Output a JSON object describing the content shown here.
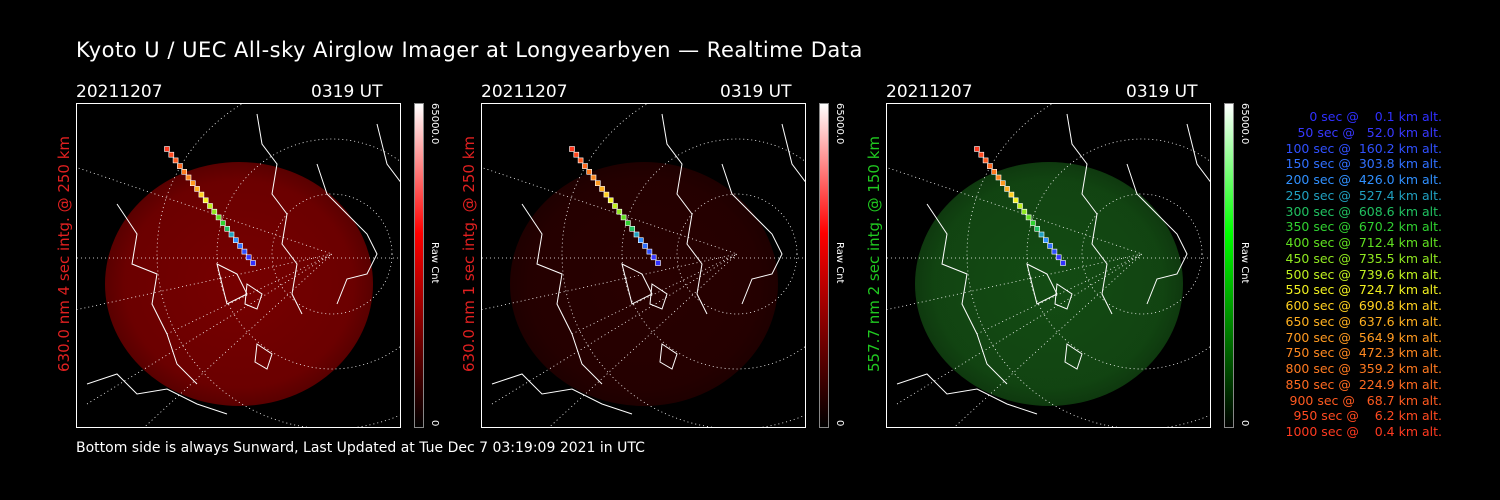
{
  "title": "Kyoto U / UEC All-sky Airglow Imager at Longyearbyen — Realtime Data",
  "footer": "Bottom side is always Sunward, Last Updated at Tue Dec  7 03:19:09 2021 in UTC",
  "panels": [
    {
      "date": "20211207",
      "time": "0319 UT",
      "side_label": "630.0 nm 4 sec intg. @ 250 km",
      "label_color": "#e02020",
      "glow": "#c00000",
      "glow_opacity": 0.62,
      "cbar_top": "65000.0",
      "cbar_bottom": "0",
      "cbar_unit": "Raw Cnt",
      "cbar_color": "#ff0000"
    },
    {
      "date": "20211207",
      "time": "0319 UT",
      "side_label": "630.0 nm 1 sec intg. @ 250 km",
      "label_color": "#e02020",
      "glow": "#5a0000",
      "glow_opacity": 0.45,
      "cbar_top": "65000.0",
      "cbar_bottom": "0",
      "cbar_unit": "Raw Cnt",
      "cbar_color": "#ff0000"
    },
    {
      "date": "20211207",
      "time": "0319 UT",
      "side_label": "557.7 nm 2 sec intg. @ 150 km",
      "label_color": "#20c820",
      "glow": "#1f7a1f",
      "glow_opacity": 0.62,
      "cbar_top": "65000.0",
      "cbar_bottom": "0",
      "cbar_unit": "Raw Cnt",
      "cbar_color": "#00ff00"
    }
  ],
  "legend": [
    {
      "text": "   0 sec @    0.1 km alt.",
      "color": "#3030ff"
    },
    {
      "text": "  50 sec @   52.0 km alt.",
      "color": "#3838ff"
    },
    {
      "text": " 100 sec @  160.2 km alt.",
      "color": "#3050ff"
    },
    {
      "text": " 150 sec @  303.8 km alt.",
      "color": "#3070ff"
    },
    {
      "text": " 200 sec @  426.0 km alt.",
      "color": "#3090ff"
    },
    {
      "text": " 250 sec @  527.4 km alt.",
      "color": "#20a0c0"
    },
    {
      "text": " 300 sec @  608.6 km alt.",
      "color": "#20c060"
    },
    {
      "text": " 350 sec @  670.2 km alt.",
      "color": "#30d030"
    },
    {
      "text": " 400 sec @  712.4 km alt.",
      "color": "#60e020"
    },
    {
      "text": " 450 sec @  735.5 km alt.",
      "color": "#90e820"
    },
    {
      "text": " 500 sec @  739.6 km alt.",
      "color": "#c0f020"
    },
    {
      "text": " 550 sec @  724.7 km alt.",
      "color": "#f0f020"
    },
    {
      "text": " 600 sec @  690.8 km alt.",
      "color": "#ffd020"
    },
    {
      "text": " 650 sec @  637.6 km alt.",
      "color": "#ffb020"
    },
    {
      "text": " 700 sec @  564.9 km alt.",
      "color": "#ff9a20"
    },
    {
      "text": " 750 sec @  472.3 km alt.",
      "color": "#ff8820"
    },
    {
      "text": " 800 sec @  359.2 km alt.",
      "color": "#ff7a20"
    },
    {
      "text": " 850 sec @  224.9 km alt.",
      "color": "#ff6a20"
    },
    {
      "text": " 900 sec @   68.7 km alt.",
      "color": "#ff5a20"
    },
    {
      "text": " 950 sec @    6.2 km alt.",
      "color": "#ff4a20"
    },
    {
      "text": "1000 sec @    0.4 km alt.",
      "color": "#ff3a20"
    }
  ]
}
